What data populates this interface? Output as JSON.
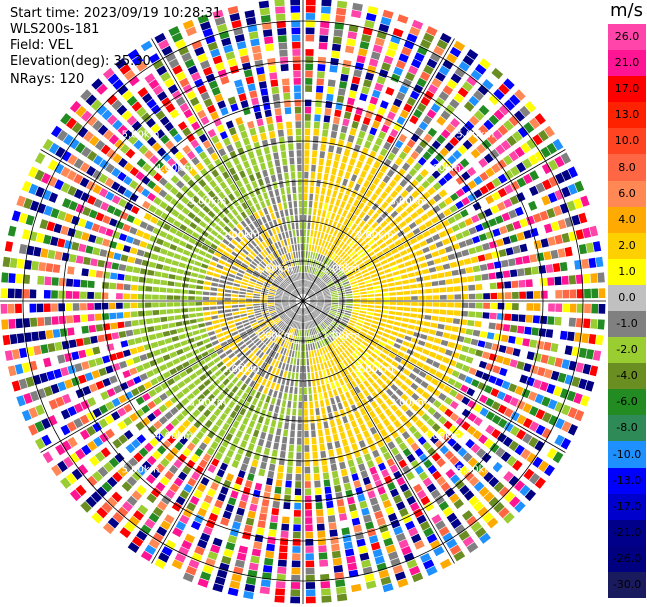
{
  "info": {
    "start_time": "Start time: 2023/09/19 10:28:31",
    "device": "WLS200s-181",
    "field": "Field: VEL",
    "elevation": "Elevation(deg): 35.30",
    "nrays": "NRays: 120"
  },
  "colorbar": {
    "unit": "m/s",
    "ticks": [
      "26.0",
      "21.0",
      "17.0",
      "13.0",
      "10.0",
      "8.0",
      "6.0",
      "4.0",
      "2.0",
      "1.0",
      "0.0",
      "-1.0",
      "-2.0",
      "-4.0",
      "-6.0",
      "-8.0",
      "-10.0",
      "-13.0",
      "-17.0",
      "-21.0",
      "-26.0",
      "-30.0"
    ],
    "colors": [
      "#ff44aa",
      "#ff1493",
      "#ff0000",
      "#ff2200",
      "#ff4422",
      "#ff6644",
      "#ff8855",
      "#ffaa00",
      "#ffd000",
      "#ffff00",
      "#c0c0c0",
      "#808080",
      "#9acd32",
      "#6b8e23",
      "#228b22",
      "#2e8b57",
      "#1e90ff",
      "#0000ff",
      "#0000cd",
      "#00008b",
      "#000080",
      "#1a1a5e"
    ]
  },
  "chart_data": {
    "type": "heatmap",
    "subtype": "PPI radial velocity",
    "field": "VEL",
    "units": "m/s",
    "nrays": 120,
    "elevation_deg": 35.3,
    "start_time": "2023/09/19 10:28:31",
    "range_rings_labels": [
      "1.00km",
      "2.00km",
      "3.00km",
      "4.00km",
      "5.00km"
    ],
    "colorbar_range": [
      -30.0,
      26.0
    ]
  }
}
